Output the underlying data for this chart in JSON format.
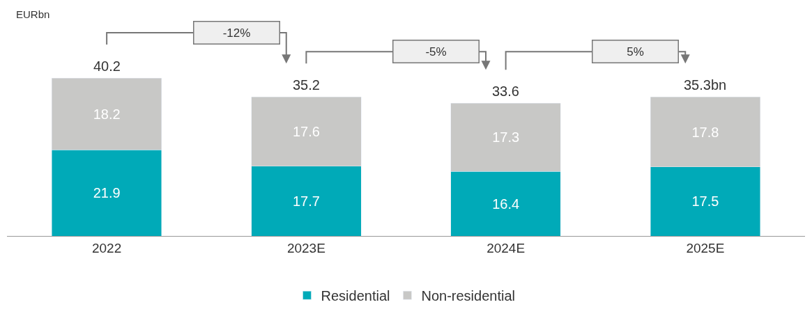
{
  "chart_data": {
    "type": "bar",
    "stacked": true,
    "categories": [
      "2022",
      "2023E",
      "2024E",
      "2025E"
    ],
    "series": [
      {
        "name": "Residential",
        "color": "#00aab8",
        "values": [
          21.9,
          17.7,
          16.4,
          17.5
        ]
      },
      {
        "name": "Non-residential",
        "color": "#c8c8c6",
        "values": [
          18.2,
          17.6,
          17.3,
          17.8
        ]
      }
    ],
    "data_labels": true,
    "totals": [
      "40.2",
      "35.2",
      "33.6",
      "35.3bn"
    ],
    "annotations": [
      "EURbn",
      "-12%",
      "-5%",
      "5%"
    ],
    "legend": "bottom"
  }
}
